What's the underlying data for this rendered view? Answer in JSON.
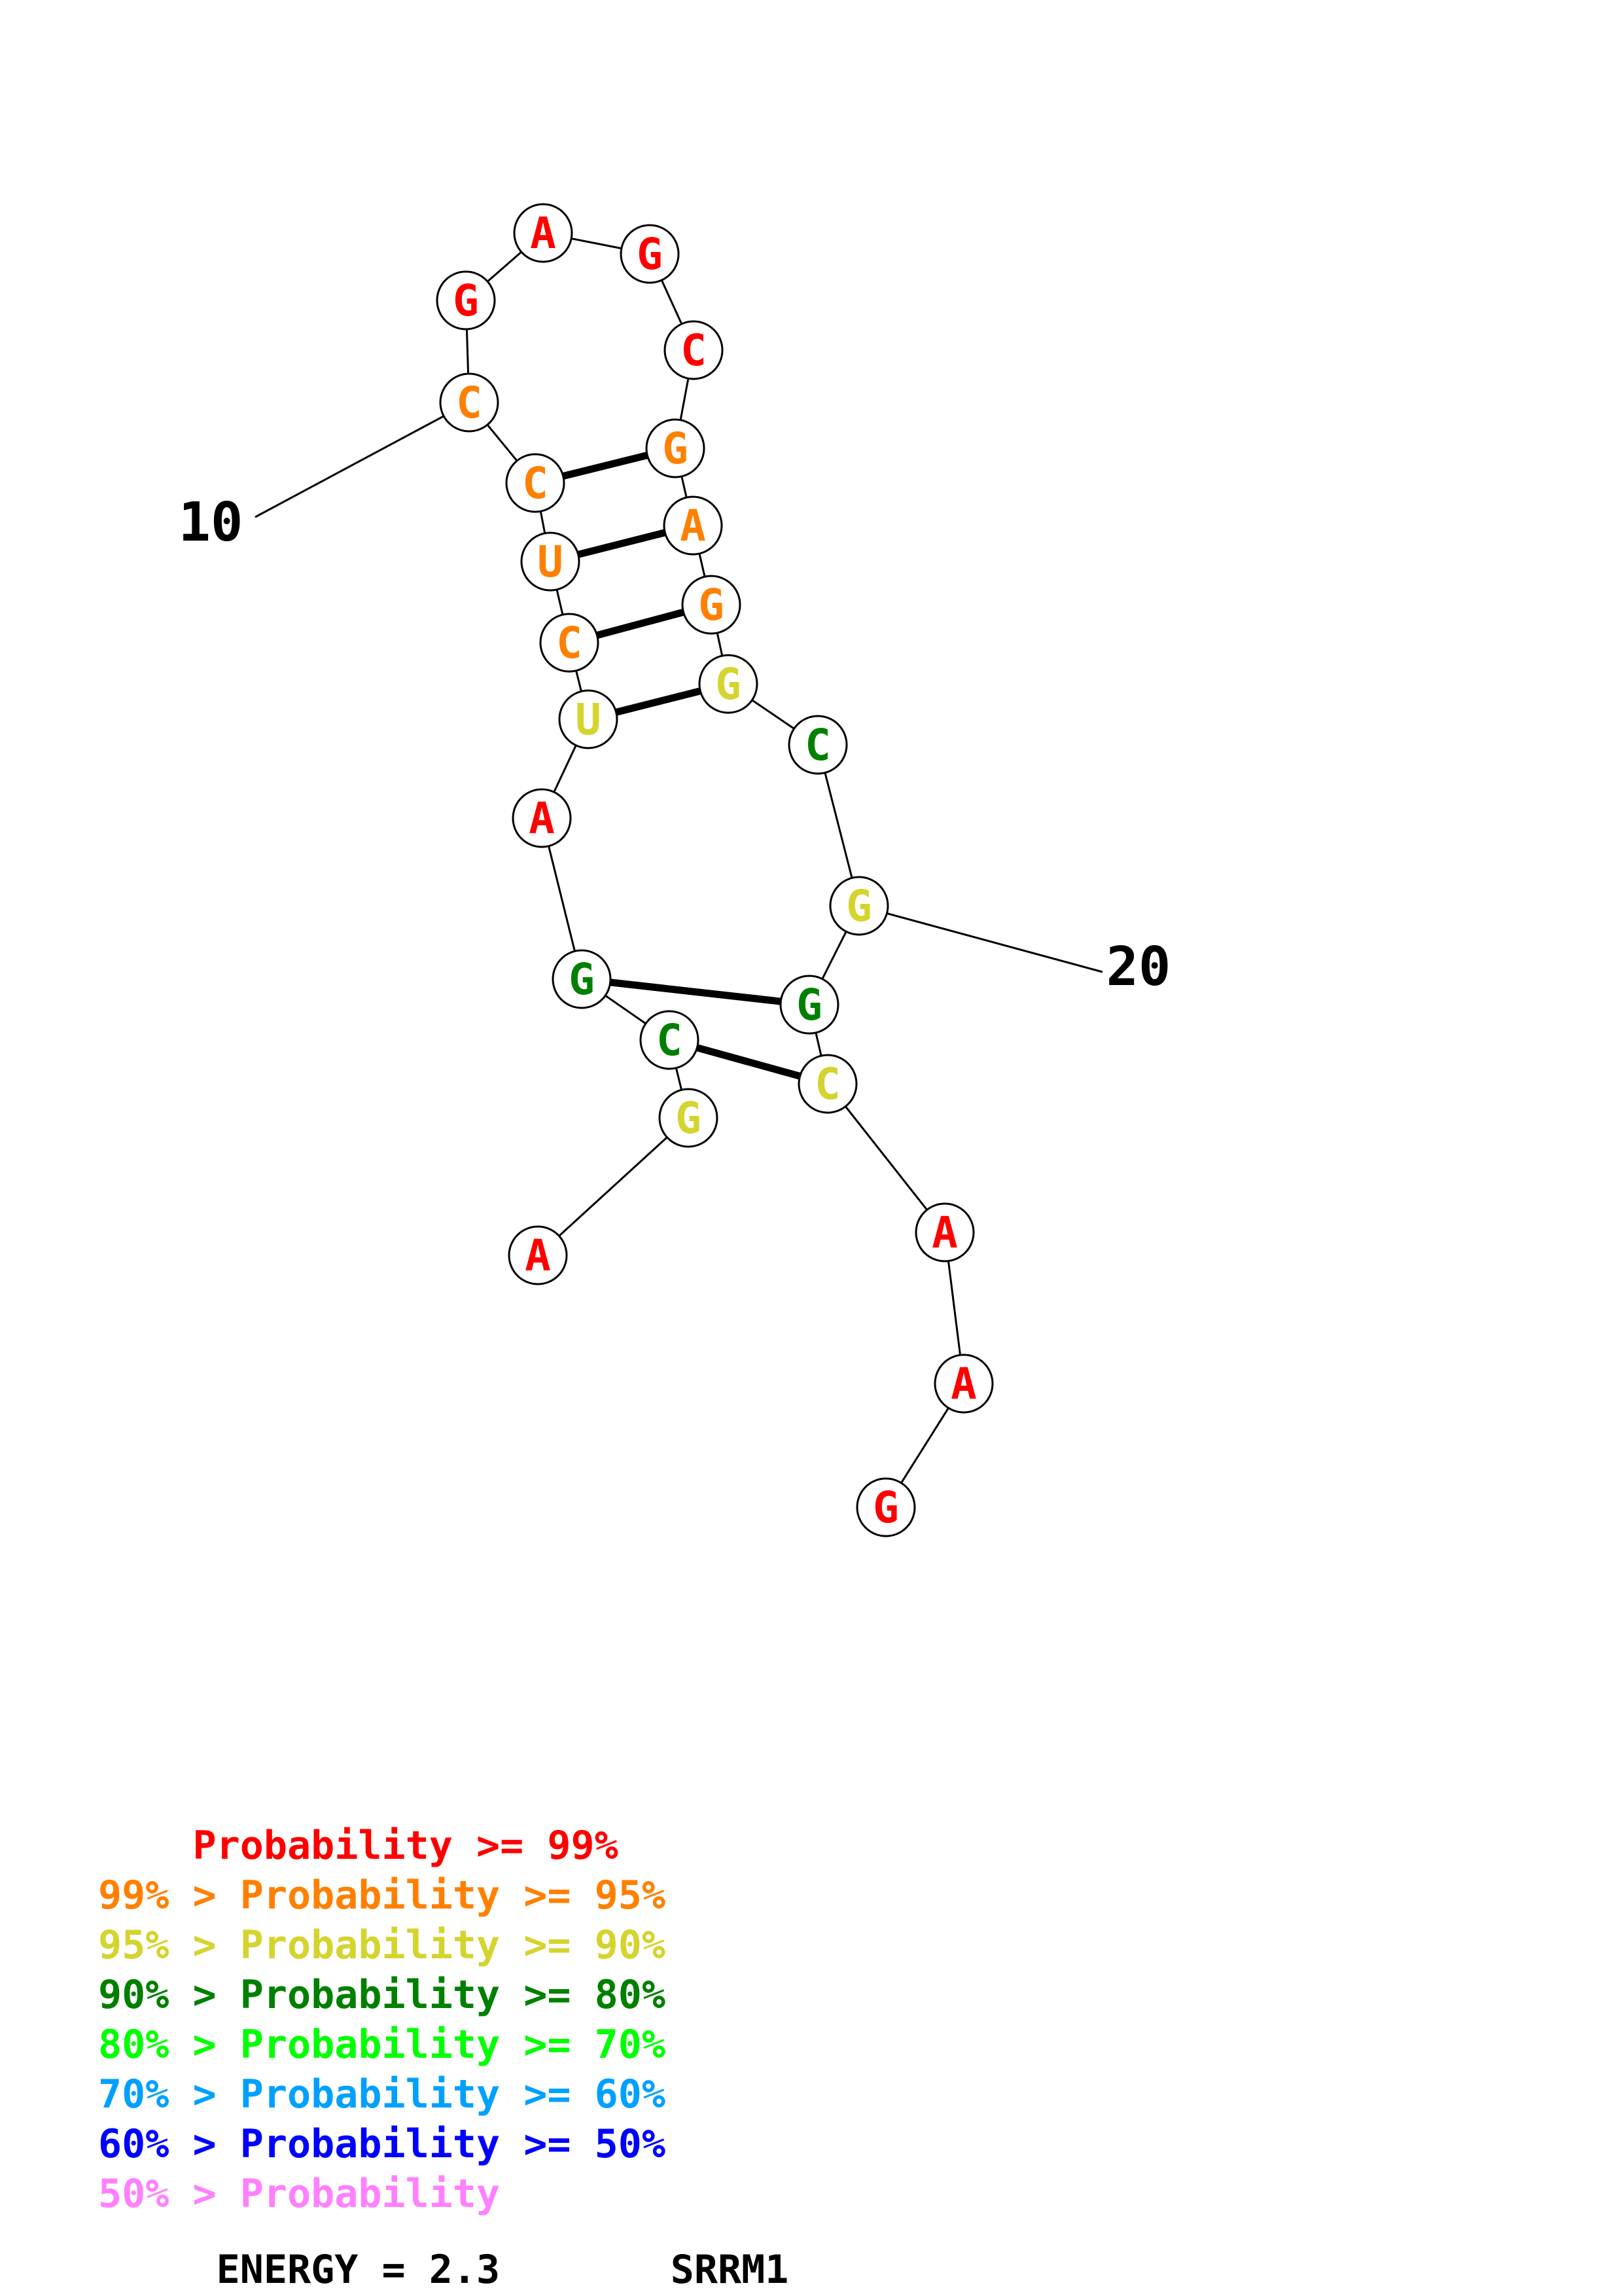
{
  "sequence": [
    {
      "base": "A",
      "color": "#ff0000"
    },
    {
      "base": "G",
      "color": "#d4d42e"
    },
    {
      "base": "C",
      "color": "#008000"
    },
    {
      "base": "G",
      "color": "#008000"
    },
    {
      "base": "A",
      "color": "#ff0000"
    },
    {
      "base": "U",
      "color": "#d4d42e"
    },
    {
      "base": "C",
      "color": "#ff8000"
    },
    {
      "base": "U",
      "color": "#ff8000"
    },
    {
      "base": "C",
      "color": "#ff8000"
    },
    {
      "base": "C",
      "color": "#ff8000"
    },
    {
      "base": "G",
      "color": "#ff0000"
    },
    {
      "base": "A",
      "color": "#ff0000"
    },
    {
      "base": "G",
      "color": "#ff0000"
    },
    {
      "base": "C",
      "color": "#ff0000"
    },
    {
      "base": "G",
      "color": "#ff8000"
    },
    {
      "base": "A",
      "color": "#ff8000"
    },
    {
      "base": "G",
      "color": "#ff8000"
    },
    {
      "base": "G",
      "color": "#d4d42e"
    },
    {
      "base": "C",
      "color": "#008000"
    },
    {
      "base": "G",
      "color": "#d4d42e"
    },
    {
      "base": "G",
      "color": "#008000"
    },
    {
      "base": "C",
      "color": "#d4d42e"
    },
    {
      "base": "A",
      "color": "#ff0000"
    },
    {
      "base": "A",
      "color": "#ff0000"
    },
    {
      "base": "G",
      "color": "#ff0000"
    }
  ],
  "pairs": [
    [
      2,
      21
    ],
    [
      3,
      20
    ],
    [
      5,
      17
    ],
    [
      6,
      16
    ],
    [
      7,
      15
    ],
    [
      8,
      14
    ]
  ],
  "position_labels": [
    {
      "index": 9,
      "text": "10"
    },
    {
      "index": 19,
      "text": "20"
    }
  ],
  "legend": [
    {
      "prefix": "    ",
      "text": "Probability >= 99%",
      "color": "#ff0000"
    },
    {
      "prefix": "99% > ",
      "text": "Probability >= 95%",
      "color": "#ff8000"
    },
    {
      "prefix": "95% > ",
      "text": "Probability >= 90%",
      "color": "#d4d42e"
    },
    {
      "prefix": "90% > ",
      "text": "Probability >= 80%",
      "color": "#008000"
    },
    {
      "prefix": "80% > ",
      "text": "Probability >= 70%",
      "color": "#00ff00"
    },
    {
      "prefix": "70% > ",
      "text": "Probability >= 60%",
      "color": "#00a0ff"
    },
    {
      "prefix": "60% > ",
      "text": "Probability >= 50%",
      "color": "#0000ff"
    },
    {
      "prefix": "50% > ",
      "text": "Probability",
      "color": "#ff80ff"
    }
  ],
  "footer": {
    "energy": "ENERGY = 2.3",
    "name": "SRRM1"
  }
}
